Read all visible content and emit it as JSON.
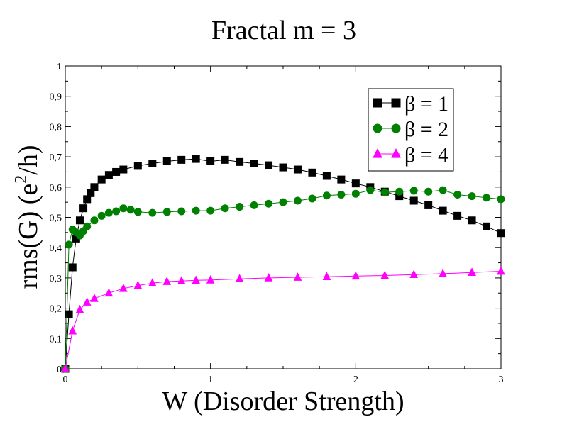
{
  "chart_data": {
    "type": "line",
    "title": "Fractal m = 3",
    "xlabel": "W (Disorder Strength)",
    "ylabel_main": "rms(G) (e",
    "ylabel_sup": "2",
    "ylabel_end": "/h)",
    "xlim": [
      0,
      3
    ],
    "ylim": [
      0,
      1
    ],
    "x_ticks": [
      0,
      1,
      2,
      3
    ],
    "x_tick_labels": [
      "0",
      "1",
      "2",
      "3"
    ],
    "y_ticks": [
      0,
      0.1,
      0.2,
      0.3,
      0.4,
      0.5,
      0.6,
      0.7,
      0.8,
      0.9,
      1
    ],
    "y_tick_labels": [
      "0",
      "0,1",
      "0,2",
      "0,3",
      "0,4",
      "0,5",
      "0,6",
      "0,7",
      "0,8",
      "0,9",
      "1"
    ],
    "grid": false,
    "legend_position": "top-right",
    "series": [
      {
        "name": "β = 1",
        "color": "#000000",
        "marker": "square",
        "x": [
          0,
          0.025,
          0.05,
          0.075,
          0.1,
          0.125,
          0.15,
          0.175,
          0.2,
          0.25,
          0.3,
          0.35,
          0.4,
          0.5,
          0.6,
          0.7,
          0.8,
          0.9,
          1.0,
          1.1,
          1.2,
          1.3,
          1.4,
          1.5,
          1.6,
          1.7,
          1.8,
          1.9,
          2.0,
          2.1,
          2.2,
          2.3,
          2.4,
          2.5,
          2.6,
          2.7,
          2.8,
          2.9,
          3.0
        ],
        "y": [
          0.0,
          0.18,
          0.335,
          0.43,
          0.49,
          0.53,
          0.56,
          0.58,
          0.6,
          0.625,
          0.64,
          0.65,
          0.658,
          0.67,
          0.678,
          0.685,
          0.69,
          0.693,
          0.685,
          0.69,
          0.683,
          0.678,
          0.672,
          0.665,
          0.658,
          0.648,
          0.637,
          0.625,
          0.612,
          0.6,
          0.585,
          0.57,
          0.555,
          0.54,
          0.522,
          0.505,
          0.49,
          0.47,
          0.448
        ]
      },
      {
        "name": "β = 2",
        "color": "#008000",
        "marker": "circle",
        "x": [
          0,
          0.025,
          0.05,
          0.075,
          0.1,
          0.125,
          0.15,
          0.2,
          0.25,
          0.3,
          0.35,
          0.4,
          0.45,
          0.5,
          0.6,
          0.7,
          0.8,
          0.9,
          1.0,
          1.1,
          1.2,
          1.3,
          1.4,
          1.5,
          1.6,
          1.7,
          1.8,
          1.9,
          2.0,
          2.1,
          2.2,
          2.3,
          2.4,
          2.5,
          2.6,
          2.7,
          2.8,
          2.9,
          3.0
        ],
        "y": [
          0.0,
          0.41,
          0.46,
          0.45,
          0.44,
          0.455,
          0.47,
          0.49,
          0.505,
          0.515,
          0.52,
          0.53,
          0.525,
          0.518,
          0.515,
          0.518,
          0.52,
          0.522,
          0.522,
          0.53,
          0.535,
          0.54,
          0.545,
          0.55,
          0.555,
          0.562,
          0.572,
          0.575,
          0.578,
          0.59,
          0.583,
          0.585,
          0.588,
          0.585,
          0.59,
          0.575,
          0.57,
          0.565,
          0.56
        ]
      },
      {
        "name": "β = 4",
        "color": "#ff00ff",
        "marker": "triangle",
        "x": [
          0,
          0.05,
          0.1,
          0.15,
          0.2,
          0.3,
          0.4,
          0.5,
          0.6,
          0.7,
          0.8,
          0.9,
          1.0,
          1.2,
          1.4,
          1.6,
          1.8,
          2.0,
          2.2,
          2.4,
          2.6,
          2.8,
          3.0
        ],
        "y": [
          0.0,
          0.125,
          0.195,
          0.22,
          0.232,
          0.25,
          0.265,
          0.275,
          0.283,
          0.288,
          0.29,
          0.292,
          0.293,
          0.297,
          0.3,
          0.302,
          0.304,
          0.306,
          0.308,
          0.311,
          0.314,
          0.318,
          0.322
        ]
      }
    ]
  }
}
